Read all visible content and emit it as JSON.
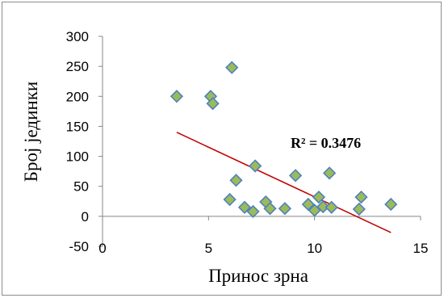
{
  "chart_data": {
    "type": "scatter",
    "title": "",
    "xlabel": "Принос зрна",
    "ylabel": "Број јединки",
    "xlim": [
      0,
      15
    ],
    "ylim": [
      -50,
      300
    ],
    "x_ticks": [
      "0",
      "5",
      "10",
      "15"
    ],
    "y_ticks": [
      "300",
      "250",
      "200",
      "150",
      "100",
      "50",
      "0",
      "-50"
    ],
    "grid": false,
    "legend": "none",
    "marker": "diamond",
    "marker_fill": "#9bbb59",
    "marker_stroke": "#4f81bd",
    "trendline_color": "#c00000",
    "x": [
      3.5,
      5.1,
      5.2,
      6.1,
      6.0,
      6.3,
      6.7,
      7.1,
      7.2,
      7.7,
      7.9,
      8.6,
      9.1,
      9.7,
      10.0,
      10.2,
      10.4,
      10.7,
      10.8,
      12.1,
      12.2,
      13.6
    ],
    "y": [
      200,
      200,
      188,
      248,
      28,
      60,
      15,
      8,
      84,
      24,
      13,
      13,
      68,
      20,
      10,
      32,
      16,
      72,
      15,
      12,
      32,
      20
    ],
    "trendline": {
      "type": "linear",
      "x_range": [
        3.5,
        13.6
      ],
      "y_range": [
        140,
        -27
      ],
      "r_squared_label": "R² = 0.3476"
    }
  }
}
